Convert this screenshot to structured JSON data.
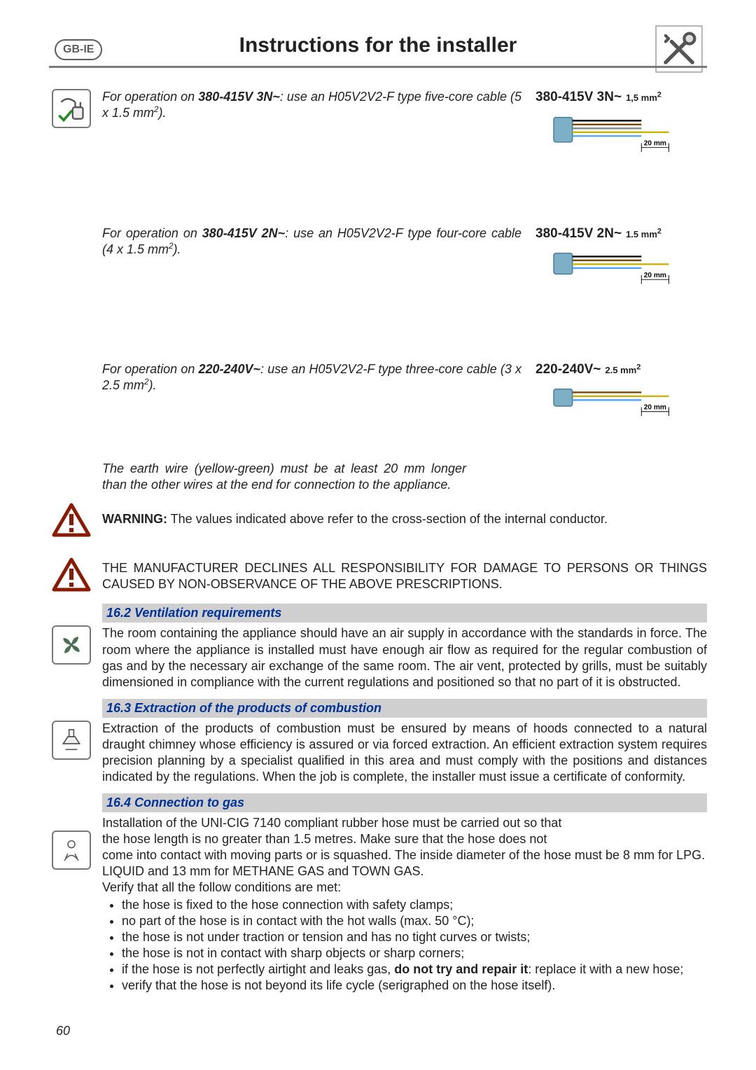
{
  "badge": "GB-IE",
  "title": "Instructions for the installer",
  "page_number": "60",
  "cable_section": {
    "note_380_3n": {
      "line1_before": "For operation on ",
      "line1_bold": "380-415V 3N~",
      "line1_after": ": use an H05V2V2-F type five-core cable (5 x 1.5 mm",
      "line1_tail": ")."
    },
    "note_380_2n": {
      "line1_before": "For operation on ",
      "line1_bold": "380-415V 2N~",
      "line1_after": ": use an H05V2V2-F type four-core cable (4 x 1.5 mm",
      "line1_tail": ")."
    },
    "note_220": {
      "line1_before": "For operation on ",
      "line1_bold": "220-240V~",
      "line1_after": ": use an H05V2V2-F type three-core cable (3 x 2.5 mm",
      "line1_tail": ")."
    },
    "earth_note": "The earth wire (yellow-green) must be at least 20 mm longer than the other wires at the end for connection to the appliance.",
    "diagrams": {
      "d1": {
        "title": "380-415V 3N~",
        "title_sub_html": "1,5 mm<sup>2</sup>",
        "len_label": "20 mm",
        "wires": 5,
        "extra_long_index": 3,
        "colors": [
          "#000000",
          "#7c4a00",
          "#888888",
          "#c9b200",
          "#4ea3ff"
        ],
        "plug_color": "#7db0c7",
        "plug_stroke": "#4a7d95",
        "bg": "#ffffff",
        "line_color": "#000000"
      },
      "d2": {
        "title": "380-415V 2N~",
        "title_sub_html": "1.5 mm<sup>2</sup>",
        "len_label": "20 mm",
        "wires": 4,
        "extra_long_index": 2,
        "colors": [
          "#000000",
          "#7c4a00",
          "#c9b200",
          "#4ea3ff"
        ],
        "plug_color": "#7db0c7",
        "plug_stroke": "#4a7d95",
        "bg": "#ffffff",
        "line_color": "#000000"
      },
      "d3": {
        "title": "220-240V~",
        "title_sub_html": "2.5 mm<sup>2</sup>",
        "len_label": "20 mm",
        "wires": 3,
        "extra_long_index": 1,
        "colors": [
          "#7c4a00",
          "#c9b200",
          "#4ea3ff"
        ],
        "plug_color": "#7db0c7",
        "plug_stroke": "#4a7d95",
        "bg": "#ffffff",
        "line_color": "#000000"
      }
    }
  },
  "warning1_label": "WARNING:",
  "warning1_text": " The values indicated above refer to the cross-section of the internal conductor.",
  "warning2_text": "THE MANUFACTURER DECLINES ALL RESPONSIBILITY FOR DAMAGE TO PERSONS OR THINGS CAUSED BY NON-OBSERVANCE OF THE ABOVE PRESCRIPTIONS.",
  "sec_162_title": "16.2  Ventilation requirements",
  "sec_162_body": "The room containing the appliance should have an air supply in accordance with the standards in force. The room where the appliance is installed must have enough air flow as required for the regular combustion of gas and by the necessary air exchange of the same room. The air vent, protected by grills, must be suitably dimensioned in compliance with the current regulations and positioned so that no part of it is obstructed.",
  "sec_163_title": "16.3  Extraction of the products of combustion",
  "sec_163_body": "Extraction of the products of combustion must be ensured by means of hoods connected to a natural draught chimney whose efficiency is assured or via forced extraction. An efficient extraction system requires precision planning by a specialist qualified in this area and must comply with the positions and distances indicated by the regulations. When the job is complete, the installer must issue a certificate of conformity.",
  "sec_164_title": "16.4  Connection to gas",
  "sec_164_intro1": "Installation of the UNI-CIG 7140 compliant rubber hose must be carried out so that",
  "sec_164_intro2": "the hose length is no greater than 1.5 metres. Make sure that the hose does not",
  "sec_164_intro3": "come into contact with moving parts or is squashed. The inside diameter of the hose must be 8 mm for LPG.",
  "sec_164_intro4": "LIQUID and 13 mm for METHANE GAS and TOWN GAS.",
  "sec_164_intro5": "Verify that all the follow conditions are met:",
  "sec_164_bullets": [
    "the hose is fixed to the hose connection with safety clamps;",
    "no part of the hose is in contact with the hot walls (max. 50 °C);",
    "the hose is not under traction or tension and has no tight curves or twists;",
    "the hose is not in contact with sharp objects or sharp corners;",
    {
      "pre": "if the hose is not perfectly airtight and leaks gas, ",
      "bold": "do not try and repair it",
      "post": ": replace it with a new hose;"
    },
    "verify that the hose is not beyond its life cycle (serigraphed on the hose itself)."
  ]
}
